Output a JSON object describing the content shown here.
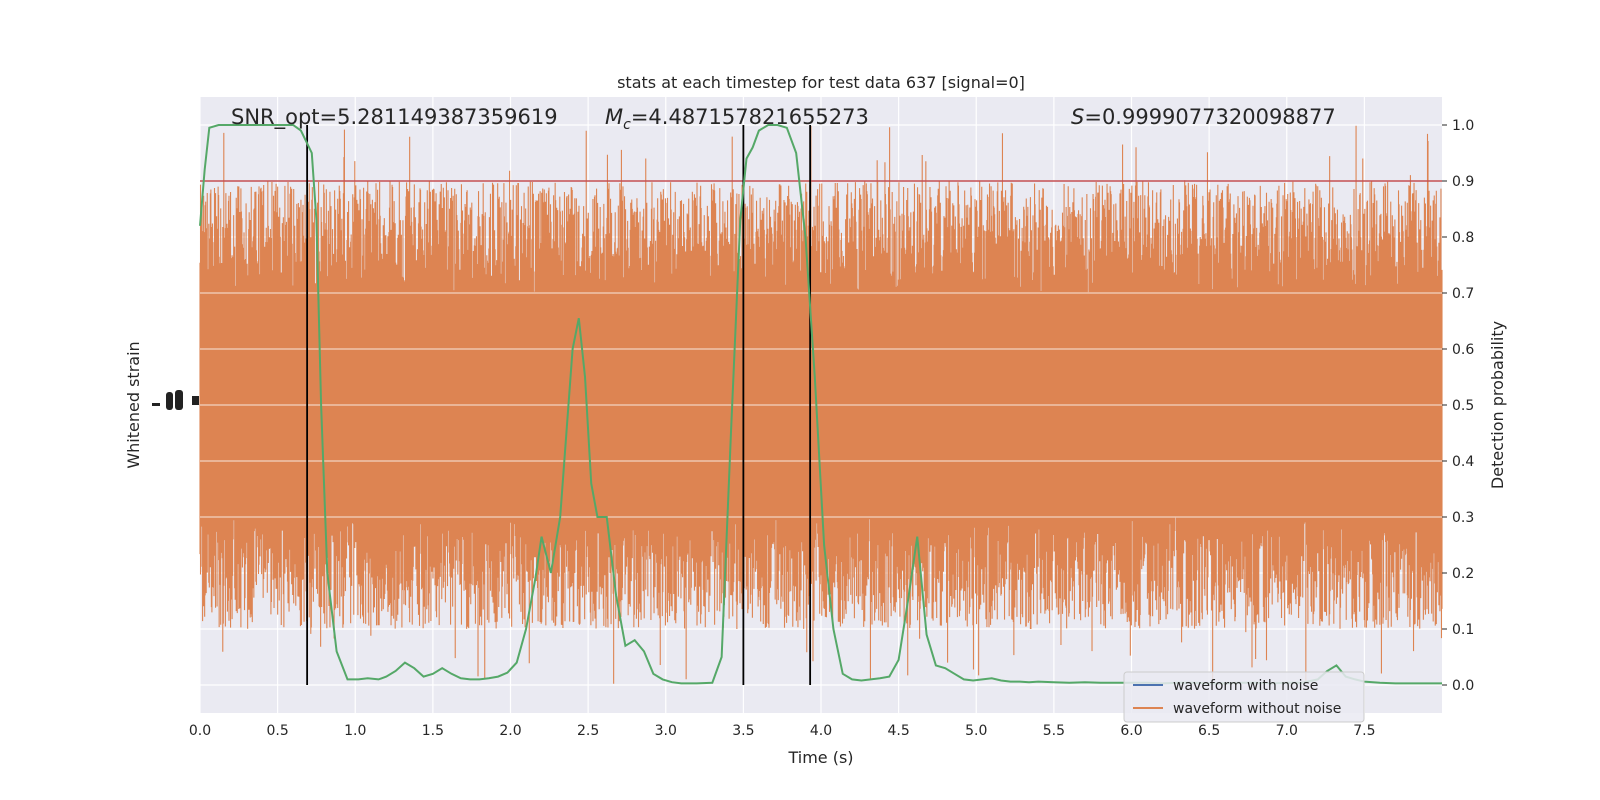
{
  "chart_data": {
    "type": "line",
    "title": "stats at each timestep for test data 637 [signal=0]",
    "xlabel": "Time (s)",
    "ylabel_left": "Whitened strain",
    "ylabel_right": "Detection probability",
    "xlim": [
      0,
      8
    ],
    "ylim_right": [
      -0.05,
      1.05
    ],
    "x_ticks": [
      "0.0",
      "0.5",
      "1.0",
      "1.5",
      "2.0",
      "2.5",
      "3.0",
      "3.5",
      "4.0",
      "4.5",
      "5.0",
      "5.5",
      "6.0",
      "6.5",
      "7.0",
      "7.5"
    ],
    "y_ticks_right": [
      "0.0",
      "0.1",
      "0.2",
      "0.3",
      "0.4",
      "0.5",
      "0.6",
      "0.7",
      "0.8",
      "0.9",
      "1.0"
    ],
    "grid": true,
    "legend": {
      "placement": "lower-right",
      "entries": [
        {
          "label": "waveform with noise",
          "color": "#4c72b0"
        },
        {
          "label": "waveform without noise",
          "color": "#dd8452"
        }
      ]
    },
    "annotations": {
      "snr": "SNR_opt=5.281149387359619",
      "mc_symbol": "M",
      "mc_sub": "c",
      "mc_value": "=4.487157821655273",
      "s_symbol": "S",
      "s_value": "=0.9999077320098877"
    },
    "threshold": {
      "value": 0.9,
      "color": "#c44e52"
    },
    "vertical_lines": [
      0.69,
      3.5,
      3.93
    ],
    "colors": {
      "background": "#eaeaf2",
      "strain": "#dd8452",
      "probability": "#55a868",
      "vline": "#000000"
    },
    "probability_series": {
      "name": "Detection probability",
      "x": [
        0.0,
        0.03,
        0.06,
        0.12,
        0.2,
        0.3,
        0.4,
        0.5,
        0.6,
        0.65,
        0.72,
        0.75,
        0.78,
        0.82,
        0.88,
        0.95,
        1.02,
        1.08,
        1.15,
        1.2,
        1.26,
        1.32,
        1.38,
        1.44,
        1.5,
        1.56,
        1.62,
        1.68,
        1.74,
        1.8,
        1.86,
        1.92,
        1.98,
        2.04,
        2.1,
        2.16,
        2.2,
        2.26,
        2.32,
        2.36,
        2.4,
        2.44,
        2.48,
        2.52,
        2.56,
        2.62,
        2.68,
        2.74,
        2.8,
        2.86,
        2.92,
        2.98,
        3.04,
        3.1,
        3.2,
        3.3,
        3.36,
        3.42,
        3.48,
        3.52,
        3.56,
        3.6,
        3.66,
        3.72,
        3.78,
        3.84,
        3.9,
        3.96,
        4.02,
        4.08,
        4.14,
        4.2,
        4.26,
        4.32,
        4.38,
        4.44,
        4.5,
        4.56,
        4.62,
        4.68,
        4.74,
        4.8,
        4.86,
        4.92,
        4.98,
        5.04,
        5.1,
        5.16,
        5.22,
        5.28,
        5.34,
        5.4,
        5.5,
        5.6,
        5.7,
        5.8,
        5.9,
        6.0,
        6.1,
        6.2,
        6.3,
        6.4,
        6.5,
        6.6,
        6.7,
        6.8,
        6.9,
        7.0,
        7.1,
        7.2,
        7.26,
        7.32,
        7.38,
        7.44,
        7.5,
        7.6,
        7.7,
        7.8,
        7.9,
        8.0
      ],
      "y": [
        0.82,
        0.92,
        0.995,
        1.0,
        1.0,
        1.0,
        1.0,
        1.0,
        1.0,
        0.99,
        0.95,
        0.83,
        0.5,
        0.2,
        0.06,
        0.01,
        0.01,
        0.012,
        0.01,
        0.015,
        0.025,
        0.04,
        0.03,
        0.015,
        0.02,
        0.03,
        0.02,
        0.012,
        0.01,
        0.01,
        0.012,
        0.015,
        0.022,
        0.04,
        0.1,
        0.19,
        0.265,
        0.2,
        0.3,
        0.45,
        0.6,
        0.655,
        0.55,
        0.36,
        0.3,
        0.3,
        0.16,
        0.07,
        0.08,
        0.06,
        0.02,
        0.01,
        0.005,
        0.003,
        0.003,
        0.004,
        0.05,
        0.45,
        0.83,
        0.94,
        0.96,
        0.99,
        1.0,
        1.0,
        0.995,
        0.95,
        0.8,
        0.55,
        0.25,
        0.1,
        0.02,
        0.01,
        0.008,
        0.01,
        0.012,
        0.015,
        0.045,
        0.15,
        0.265,
        0.09,
        0.035,
        0.03,
        0.02,
        0.01,
        0.008,
        0.01,
        0.012,
        0.008,
        0.006,
        0.006,
        0.005,
        0.006,
        0.005,
        0.004,
        0.005,
        0.004,
        0.004,
        0.004,
        0.004,
        0.003,
        0.004,
        0.004,
        0.003,
        0.003,
        0.004,
        0.004,
        0.003,
        0.004,
        0.004,
        0.01,
        0.025,
        0.035,
        0.015,
        0.01,
        0.006,
        0.004,
        0.003,
        0.003,
        0.003,
        0.003
      ]
    },
    "strain_series": {
      "name": "waveform without noise",
      "band_low": [
        0.3,
        0.1
      ],
      "band_high": [
        0.7,
        0.9
      ],
      "peak_max": 1.0,
      "peak_min": 0.0
    },
    "left_axis_tick_labels_overlapping": "1e-20"
  }
}
